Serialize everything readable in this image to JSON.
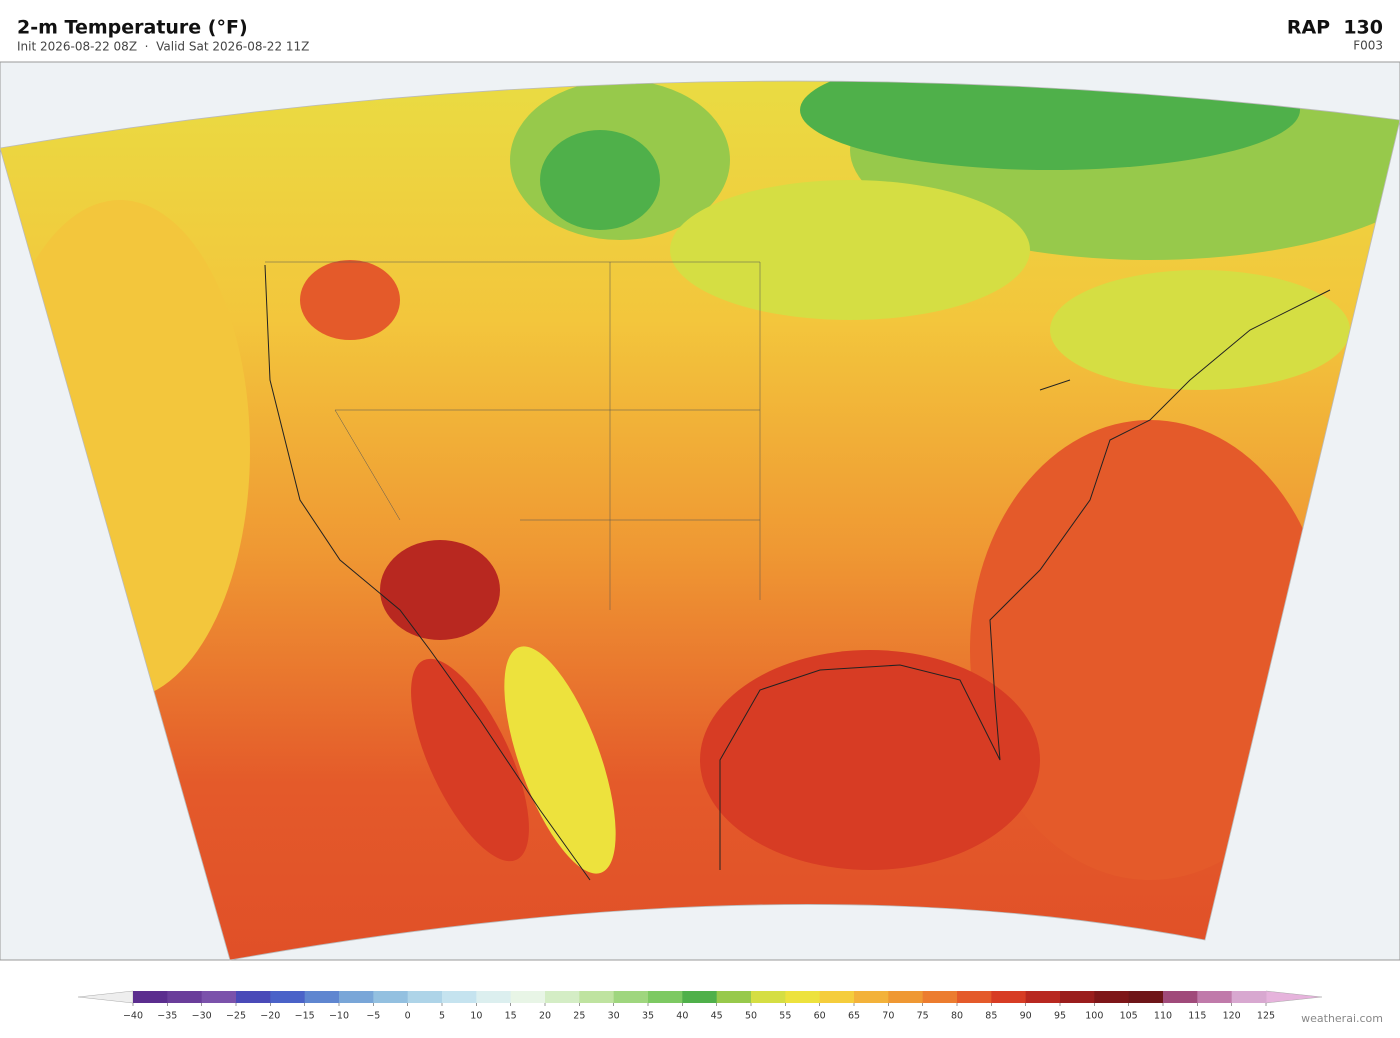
{
  "header": {
    "title": "2-m Temperature  (°F)",
    "subtitle": "Init 2026-08-22 08Z  ·  Valid Sat 2026-08-22 11Z",
    "model": "RAP  130",
    "forecast_hour": "F003"
  },
  "colorbar": {
    "ticks": [
      {
        "value": -40,
        "label": "−40"
      },
      {
        "value": -35,
        "label": "−35"
      },
      {
        "value": -30,
        "label": "−30"
      },
      {
        "value": -25,
        "label": "−25"
      },
      {
        "value": -20,
        "label": "−20"
      },
      {
        "value": -15,
        "label": "−15"
      },
      {
        "value": -10,
        "label": "−10"
      },
      {
        "value": -5,
        "label": "−5"
      },
      0,
      5,
      10,
      15,
      20,
      25,
      30,
      35,
      40,
      45,
      50,
      55,
      60,
      65,
      70,
      75,
      80,
      85,
      90,
      95,
      100,
      105,
      110,
      115,
      120,
      125
    ],
    "colors": [
      "#5b2d8e",
      "#6a3d9a",
      "#7b52ab",
      "#4a4ab8",
      "#4a62c8",
      "#5f86d0",
      "#79a6d8",
      "#93c0e0",
      "#aed4e8",
      "#c5e3ef",
      "#dcefef",
      "#e8f5e6",
      "#d4edc5",
      "#bfe3a0",
      "#9fd67e",
      "#7dc962",
      "#4fb04a",
      "#97c94b",
      "#d5de43",
      "#ede23d",
      "#f5cd3c",
      "#f3b23a",
      "#ef9833",
      "#ec7c2f",
      "#e45a2a",
      "#d73c24",
      "#b82820",
      "#9a1d1c",
      "#7e1618",
      "#6e1518",
      "#a04a7a",
      "#c07aaa",
      "#d8a8d0"
    ],
    "under_color": "#eeeeee",
    "over_color": "#e6b3dc"
  },
  "credit": "weatherai.com"
}
